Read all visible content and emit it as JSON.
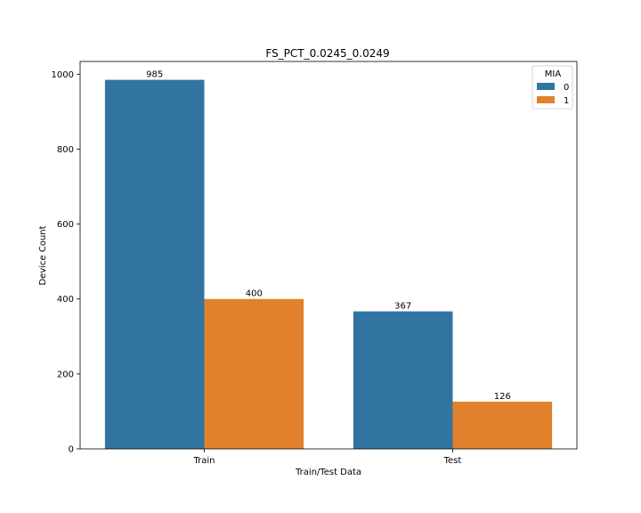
{
  "chart_data": {
    "type": "bar",
    "title": "FS_PCT_0.0245_0.0249",
    "xlabel": "Train/Test Data",
    "ylabel": "Device Count",
    "categories": [
      "Train",
      "Test"
    ],
    "ylim": [
      0,
      1034
    ],
    "yticks": [
      0,
      200,
      400,
      600,
      800,
      1000
    ],
    "yticks_text": [
      "0",
      "200",
      "400",
      "600",
      "800",
      "1000"
    ],
    "grid": false,
    "legend": {
      "title": "MIA",
      "position": "top-right"
    },
    "series": [
      {
        "name": "0",
        "color": "#3274a1",
        "values": [
          985,
          367
        ],
        "labels": [
          "985",
          "367"
        ]
      },
      {
        "name": "1",
        "color": "#e1812c",
        "values": [
          400,
          126
        ],
        "labels": [
          "400",
          "126"
        ]
      }
    ]
  }
}
